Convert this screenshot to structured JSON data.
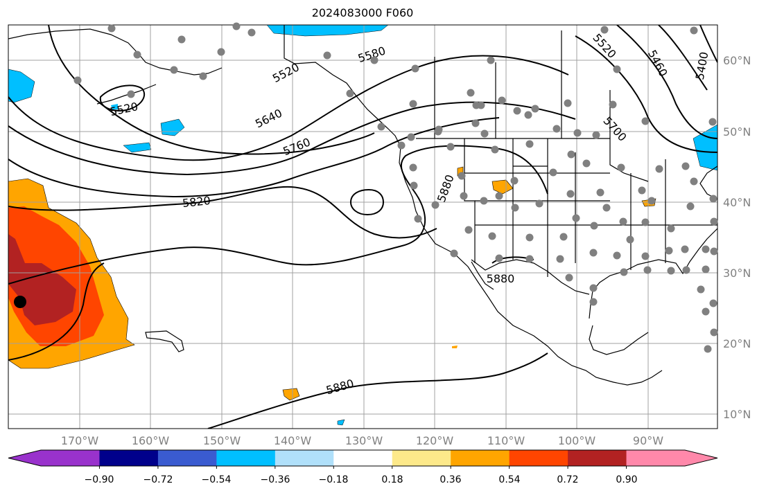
{
  "title": "2024083000 F060",
  "map": {
    "lat_labels": [
      "60°N",
      "50°N",
      "40°N",
      "30°N",
      "20°N",
      "10°N"
    ],
    "lon_labels": [
      "170°W",
      "160°W",
      "150°W",
      "140°W",
      "130°W",
      "120°W",
      "110°W",
      "100°W",
      "90°W"
    ],
    "contour_labels": [
      "5520",
      "5520",
      "5580",
      "5640",
      "5760",
      "5820",
      "5880",
      "5880",
      "5880",
      "5520",
      "5460",
      "5400",
      "5700"
    ],
    "station_color": "#808080",
    "marker_color": "#000000"
  },
  "colorbar": {
    "ticks": [
      "−0.90",
      "−0.72",
      "−0.54",
      "−0.36",
      "−0.18",
      "0.18",
      "0.36",
      "0.54",
      "0.72",
      "0.90"
    ],
    "colors": [
      "#9932cc",
      "#00008b",
      "#3a5bd0",
      "#00bfff",
      "#b0e0fa",
      "#ffffff",
      "#fde98a",
      "#ffa500",
      "#ff4500",
      "#b22222",
      "#ff88aa"
    ]
  }
}
